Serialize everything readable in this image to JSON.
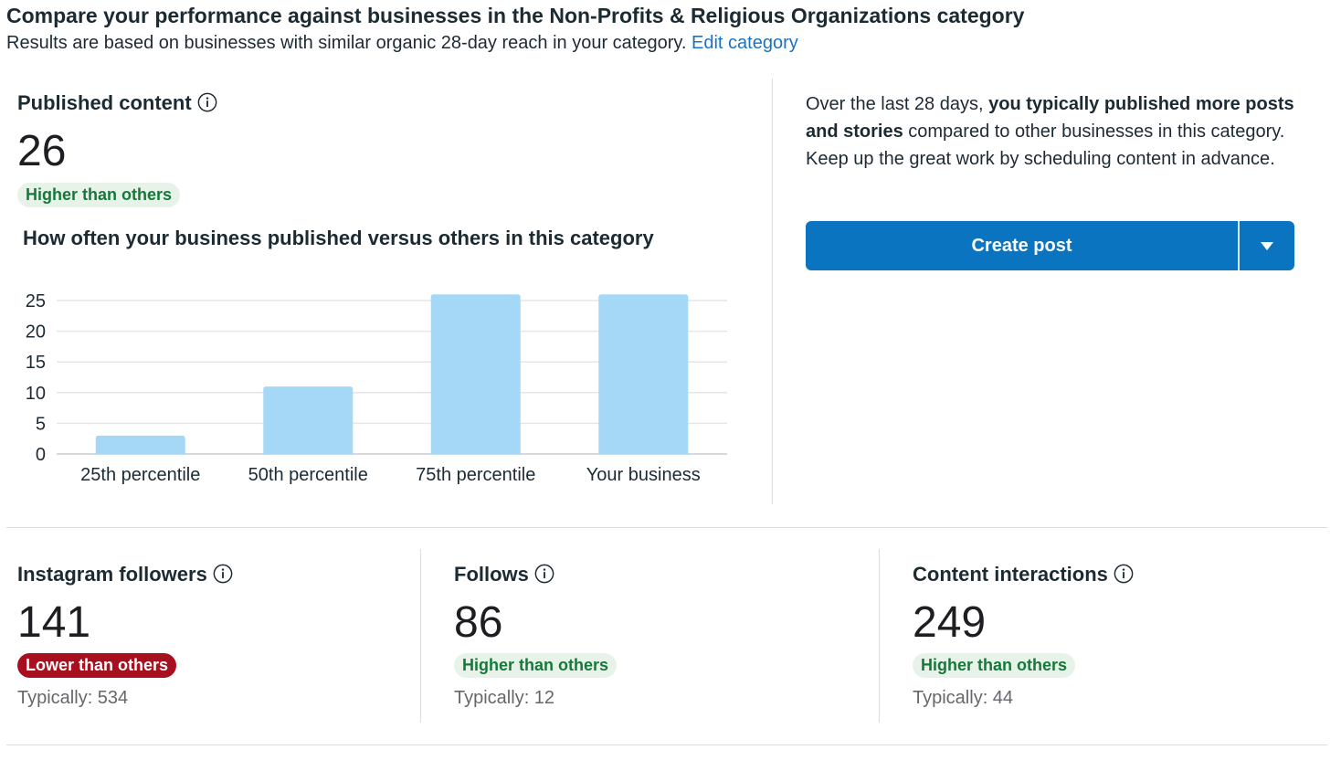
{
  "header": {
    "title": "Compare your performance against businesses in the Non-Profits & Religious Organizations category",
    "subtitle": "Results are based on businesses with similar organic 28-day reach in your category.",
    "edit_link": "Edit category"
  },
  "published": {
    "label": "Published content",
    "value": "26",
    "badge": "Higher than others",
    "chart_title": "How often your business published versus others in this category"
  },
  "insight": {
    "prefix": "Over the last 28 days, ",
    "bold": "you typically published more posts and stories",
    "suffix": " compared to other businesses in this category. Keep up the great work by scheduling content in advance."
  },
  "cta": {
    "label": "Create post",
    "dropdown_icon": "caret-down-icon"
  },
  "metrics": [
    {
      "label": "Instagram followers",
      "value": "141",
      "badge": "Lower than others",
      "badge_status": "negative",
      "typically": "Typically: 534"
    },
    {
      "label": "Follows",
      "value": "86",
      "badge": "Higher than others",
      "badge_status": "positive",
      "typically": "Typically: 12"
    },
    {
      "label": "Content interactions",
      "value": "249",
      "badge": "Higher than others",
      "badge_status": "positive",
      "typically": "Typically: 44"
    }
  ],
  "colors": {
    "accent": "#0b74c1",
    "link": "#1a73c0",
    "bar": "#a4d8f6",
    "positive_bg": "#e7f3e8",
    "positive_text": "#16783a",
    "negative_bg": "#a8101f"
  },
  "icons": {
    "info": "info-icon"
  },
  "chart_data": {
    "type": "bar",
    "categories": [
      "25th percentile",
      "50th percentile",
      "75th percentile",
      "Your business"
    ],
    "values": [
      3,
      11,
      26,
      26
    ],
    "title": "How often your business published versus others in this category",
    "xlabel": "",
    "ylabel": "",
    "ylim": [
      0,
      26
    ],
    "yticks": [
      0,
      5,
      10,
      15,
      20,
      25
    ],
    "grid": true
  }
}
